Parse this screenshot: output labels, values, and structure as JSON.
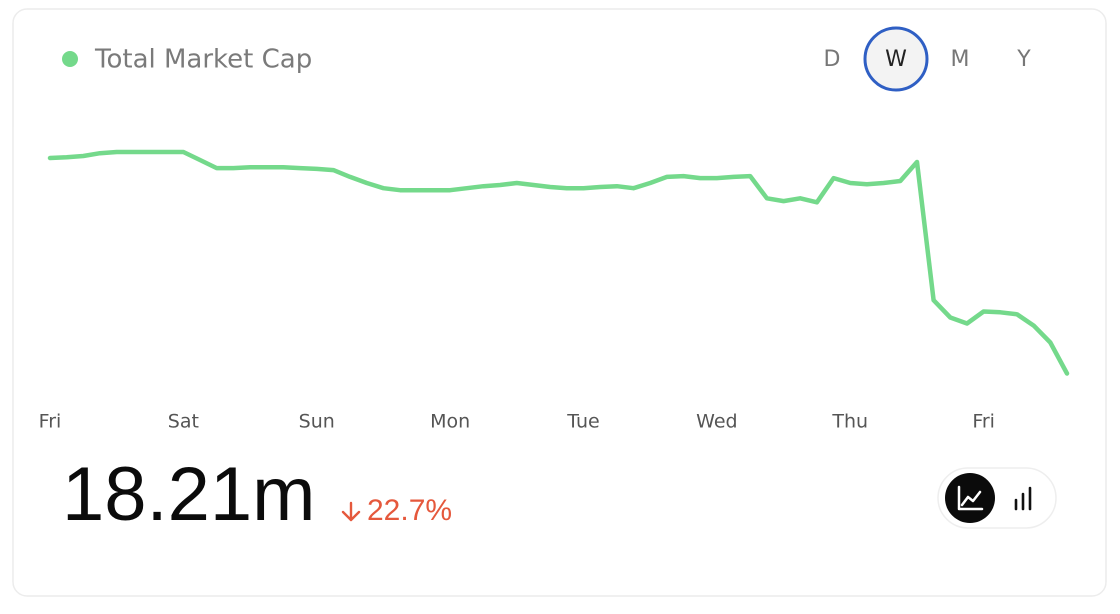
{
  "chart_data": {
    "type": "line",
    "series": [
      {
        "name": "Total Market Cap",
        "color": "#74d98b",
        "values": [
          23.56,
          23.58,
          23.61,
          23.68,
          23.71,
          23.71,
          23.71,
          23.71,
          23.71,
          23.51,
          23.31,
          23.31,
          23.33,
          23.33,
          23.33,
          23.31,
          23.29,
          23.26,
          23.09,
          22.94,
          22.81,
          22.76,
          22.76,
          22.76,
          22.76,
          22.81,
          22.86,
          22.89,
          22.94,
          22.89,
          22.84,
          22.81,
          22.81,
          22.84,
          22.86,
          22.81,
          22.94,
          23.09,
          23.11,
          23.06,
          23.06,
          23.09,
          23.11,
          22.56,
          22.49,
          22.56,
          22.46,
          23.06,
          22.94,
          22.91,
          22.94,
          22.99,
          23.46,
          20.03,
          19.6,
          19.45,
          19.75,
          19.73,
          19.68,
          19.4,
          18.98,
          18.21
        ]
      }
    ],
    "xticks": [
      {
        "value": 0,
        "label": "Fri"
      },
      {
        "value": 8,
        "label": "Sat"
      },
      {
        "value": 16,
        "label": "Sun"
      },
      {
        "value": 24,
        "label": "Mon"
      },
      {
        "value": 32,
        "label": "Tue"
      },
      {
        "value": 40,
        "label": "Wed"
      },
      {
        "value": 48,
        "label": "Thu"
      },
      {
        "value": 56,
        "label": "Fri"
      }
    ],
    "ylim": [
      17.8,
      25.0
    ]
  },
  "ranges": [
    "D",
    "W",
    "M",
    "Y"
  ],
  "selected_range": 1,
  "summary": {
    "value": "18.21m",
    "change": "22.7%",
    "change_color": "#e5583c"
  }
}
